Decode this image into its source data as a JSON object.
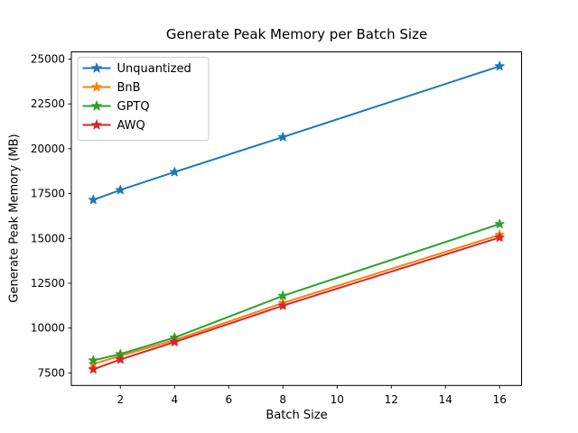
{
  "chart_data": {
    "type": "line",
    "title": "Generate Peak Memory per Batch Size",
    "xlabel": "Batch Size",
    "ylabel": "Generate Peak Memory (MB)",
    "x": [
      1,
      2,
      4,
      8,
      16
    ],
    "series": [
      {
        "name": "Unquantized",
        "color": "#1f77b4",
        "values": [
          17150,
          17700,
          18700,
          20650,
          24600
        ]
      },
      {
        "name": "BnB",
        "color": "#ff7f0e",
        "values": [
          8000,
          8450,
          9330,
          11400,
          15200
        ]
      },
      {
        "name": "GPTQ",
        "color": "#2ca02c",
        "values": [
          8200,
          8550,
          9470,
          11800,
          15800
        ]
      },
      {
        "name": "AWQ",
        "color": "#d62728",
        "values": [
          7700,
          8250,
          9220,
          11250,
          15050
        ]
      }
    ],
    "xticks": [
      2,
      4,
      6,
      8,
      10,
      12,
      14,
      16
    ],
    "yticks": [
      7500,
      10000,
      12500,
      15000,
      17500,
      20000,
      22500,
      25000
    ],
    "xlim": [
      0.19,
      16.81
    ],
    "ylim": [
      6800,
      25400
    ],
    "grid": false,
    "legend_position": "upper left",
    "marker": "star",
    "marker_size": 5.2,
    "line_width": 2,
    "background": "#ffffff",
    "spine_color": "#000000",
    "legend_border_color": "#cccccc"
  }
}
